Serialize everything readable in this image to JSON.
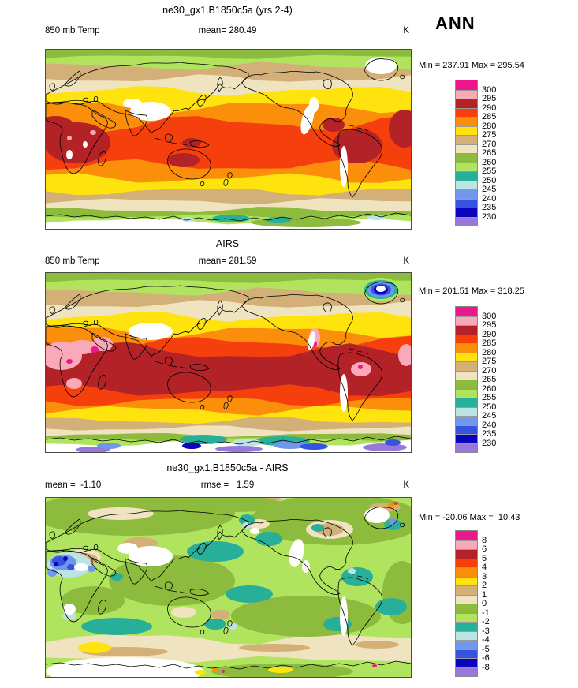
{
  "page": {
    "season_label": "ANN"
  },
  "palette": {
    "colors": [
      "#ED168B",
      "#F9A9B8",
      "#B22226",
      "#F5400D",
      "#FB8F0C",
      "#FFE30E",
      "#D2B078",
      "#F0E3C0",
      "#8CBB3D",
      "#B0E45F",
      "#27AF9A",
      "#BBE4E3",
      "#7197EC",
      "#3751E0",
      "#0A04BE",
      "#9878DB"
    ],
    "names": [
      "magenta",
      "pink",
      "dark-red",
      "red-orange",
      "orange",
      "yellow",
      "tan",
      "cream",
      "olive-green",
      "light-green",
      "teal",
      "pale-cyan",
      "cornflower-blue",
      "royal-blue",
      "navy",
      "purple"
    ]
  },
  "panels": [
    {
      "id": "model",
      "title": "ne30_gx1.B1850c5a (yrs 2-4)",
      "left_label": "850 mb Temp",
      "center_label": "mean= 280.49",
      "unit": "K",
      "minmax": "Min = 237.91 Max = 295.54",
      "colorbar_labels": [
        "300",
        "295",
        "290",
        "285",
        "280",
        "275",
        "270",
        "265",
        "260",
        "255",
        "250",
        "245",
        "240",
        "235",
        "230"
      ]
    },
    {
      "id": "obs",
      "title": "AIRS",
      "left_label": "850 mb Temp",
      "center_label": "mean= 281.59",
      "unit": "K",
      "minmax": "Min = 201.51 Max = 318.25",
      "colorbar_labels": [
        "300",
        "295",
        "290",
        "285",
        "280",
        "275",
        "270",
        "265",
        "260",
        "255",
        "250",
        "245",
        "240",
        "235",
        "230"
      ]
    },
    {
      "id": "diff",
      "title": "ne30_gx1.B1850c5a - AIRS",
      "left_label": "mean =  -1.10",
      "center_label": "rmse =   1.59",
      "unit": "K",
      "minmax": "Min = -20.06 Max =  10.43",
      "colorbar_labels": [
        "8",
        "6",
        "5",
        "4",
        "3",
        "2",
        "1",
        "0",
        "-1",
        "-2",
        "-3",
        "-4",
        "-5",
        "-6",
        "-8"
      ]
    }
  ],
  "chart_data": [
    {
      "type": "heatmap",
      "panel": "top",
      "title": "ne30_gx1.B1850c5a (yrs 2-4)",
      "variable": "850 mb Temp",
      "season": "ANN",
      "units": "K",
      "mean": 280.49,
      "min": 237.91,
      "max": 295.54,
      "contour_levels": [
        230,
        235,
        240,
        245,
        250,
        255,
        260,
        265,
        270,
        275,
        280,
        285,
        290,
        295,
        300
      ],
      "band_colors_low_to_high": [
        "#9878DB",
        "#0A04BE",
        "#3751E0",
        "#7197EC",
        "#BBE4E3",
        "#27AF9A",
        "#B0E45F",
        "#8CBB3D",
        "#F0E3C0",
        "#D2B078",
        "#FFE30E",
        "#FB8F0C",
        "#F5400D",
        "#B22226",
        "#F9A9B8",
        "#ED168B"
      ],
      "projection": "global equirectangular world map, filled contours with black coastlines",
      "legend_position": "right"
    },
    {
      "type": "heatmap",
      "panel": "middle",
      "title": "AIRS",
      "variable": "850 mb Temp",
      "season": "ANN",
      "units": "K",
      "mean": 281.59,
      "min": 201.51,
      "max": 318.25,
      "contour_levels": [
        230,
        235,
        240,
        245,
        250,
        255,
        260,
        265,
        270,
        275,
        280,
        285,
        290,
        295,
        300
      ],
      "band_colors_low_to_high": [
        "#9878DB",
        "#0A04BE",
        "#3751E0",
        "#7197EC",
        "#BBE4E3",
        "#27AF9A",
        "#B0E45F",
        "#8CBB3D",
        "#F0E3C0",
        "#D2B078",
        "#FFE30E",
        "#FB8F0C",
        "#F5400D",
        "#B22226",
        "#F9A9B8",
        "#ED168B"
      ],
      "projection": "global equirectangular world map, filled contours with black coastlines",
      "legend_position": "right"
    },
    {
      "type": "heatmap",
      "panel": "bottom",
      "title": "ne30_gx1.B1850c5a - AIRS",
      "variable": "850 mb Temp difference",
      "season": "ANN",
      "units": "K",
      "statistic": {
        "mean": -1.1,
        "rmse": 1.59
      },
      "min": -20.06,
      "max": 10.43,
      "contour_levels": [
        -8,
        -6,
        -5,
        -4,
        -3,
        -2,
        -1,
        0,
        1,
        2,
        3,
        4,
        5,
        6,
        8
      ],
      "band_colors_low_to_high": [
        "#9878DB",
        "#0A04BE",
        "#3751E0",
        "#7197EC",
        "#BBE4E3",
        "#27AF9A",
        "#B0E45F",
        "#8CBB3D",
        "#F0E3C0",
        "#D2B078",
        "#FFE30E",
        "#FB8F0C",
        "#F5400D",
        "#B22226",
        "#F9A9B8",
        "#ED168B"
      ],
      "projection": "global equirectangular world map, filled contours with black coastlines",
      "legend_position": "right"
    }
  ]
}
